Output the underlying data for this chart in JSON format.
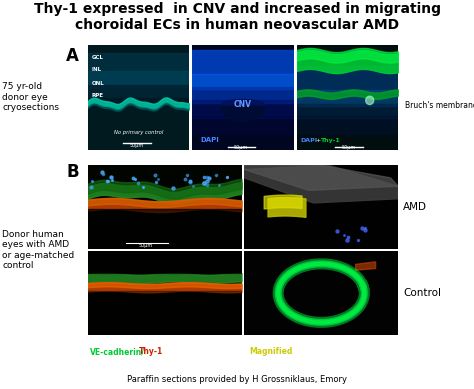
{
  "title_line1": "Thy-1 expressed  in CNV and increased in migrating",
  "title_line2": "choroidal ECs in human neovascular AMD",
  "title_fontsize": 10,
  "title_fontweight": "bold",
  "panel_A_label": "A",
  "panel_B_label": "B",
  "left_label_A": "75 yr-old\ndonor eye\ncryosections",
  "left_label_B": "Donor human\neyes with AMD\nor age-matched\ncontrol",
  "panel_A_layer_labels": [
    "GCL",
    "INL",
    "ONL",
    "RPE"
  ],
  "panel_A_right_label": "Bruch's membrane",
  "panel_A_scale": [
    "50μm",
    "50μm",
    "50μm"
  ],
  "panel_A_center_text": "CNV",
  "panel_B_right_top": "AMD",
  "panel_B_right_bottom": "Control",
  "footer": "Paraffin sections provided by H Grossniklaus, Emory",
  "bg_color": "#ffffff"
}
